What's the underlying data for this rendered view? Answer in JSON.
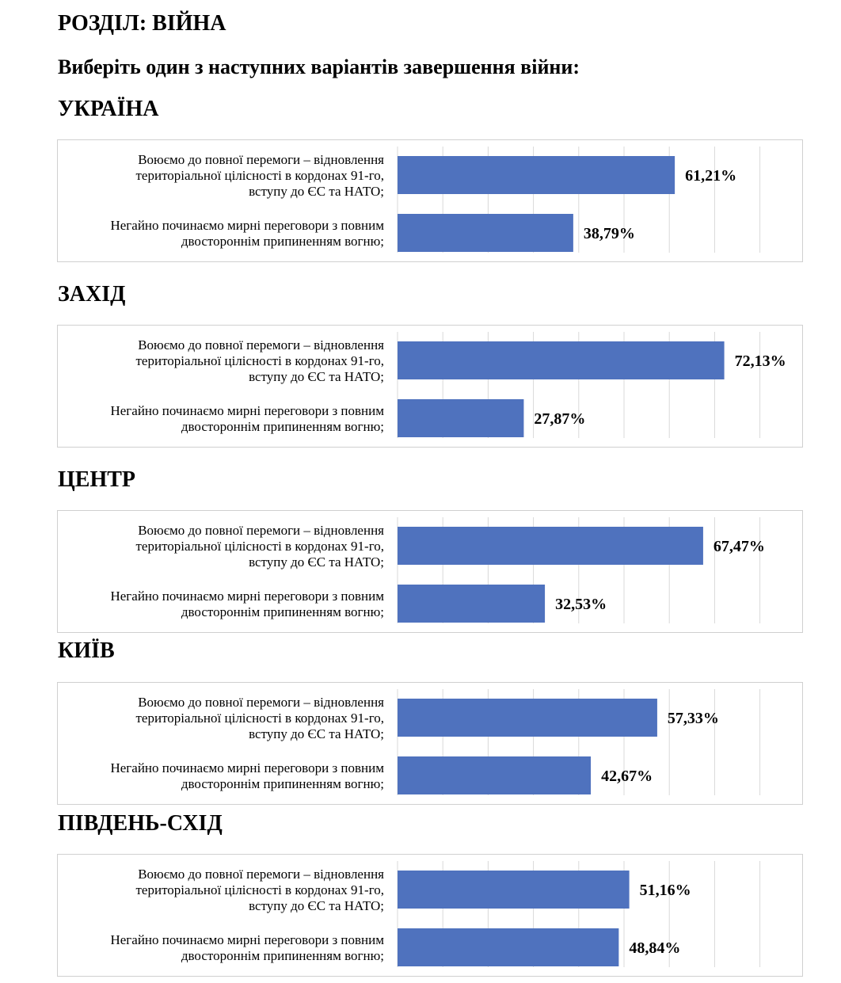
{
  "section_title": "РОЗДІЛ: ВІЙНА",
  "question": "Виберіть один з наступних варіантів завершення війни:",
  "colors": {
    "bar": "#4f72be",
    "gridline": "#d9d9d9",
    "border": "#d0d0d0"
  },
  "categories": [
    [
      "Воюємо до повної перемоги – відновлення",
      "територіальної цілісності в кордонах 91-го,",
      "вступу до ЄС та НАТО;"
    ],
    [
      "Негайно починаємо мирні переговори з повним",
      "двостороннім припиненням вогню;"
    ]
  ],
  "chart_data": [
    {
      "type": "bar",
      "orientation": "horizontal",
      "title": "УКРАЇНА",
      "values": [
        61.21,
        38.79
      ],
      "value_labels": [
        "61,21%",
        "38,79%"
      ],
      "xlim": [
        0,
        80
      ],
      "grid": true
    },
    {
      "type": "bar",
      "orientation": "horizontal",
      "title": "ЗАХІД",
      "values": [
        72.13,
        27.87
      ],
      "value_labels": [
        "72,13%",
        "27,87%"
      ],
      "xlim": [
        0,
        80
      ],
      "grid": true
    },
    {
      "type": "bar",
      "orientation": "horizontal",
      "title": "ЦЕНТР",
      "values": [
        67.47,
        32.53
      ],
      "value_labels": [
        "67,47%",
        "32,53%"
      ],
      "xlim": [
        0,
        80
      ],
      "grid": true
    },
    {
      "type": "bar",
      "orientation": "horizontal",
      "title": "КИЇВ",
      "values": [
        57.33,
        42.67
      ],
      "value_labels": [
        "57,33%",
        "42,67%"
      ],
      "xlim": [
        0,
        80
      ],
      "grid": true
    },
    {
      "type": "bar",
      "orientation": "horizontal",
      "title": "ПІВДЕНЬ-СХІД",
      "values": [
        51.16,
        48.84
      ],
      "value_labels": [
        "51,16%",
        "48,84%"
      ],
      "xlim": [
        0,
        80
      ],
      "grid": true
    }
  ]
}
